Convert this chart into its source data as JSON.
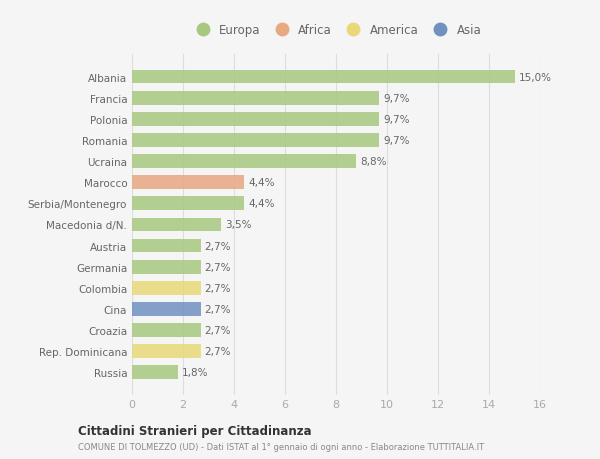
{
  "countries": [
    "Albania",
    "Francia",
    "Polonia",
    "Romania",
    "Ucraina",
    "Marocco",
    "Serbia/Montenegro",
    "Macedonia d/N.",
    "Austria",
    "Germania",
    "Colombia",
    "Cina",
    "Croazia",
    "Rep. Dominicana",
    "Russia"
  ],
  "values": [
    15.0,
    9.7,
    9.7,
    9.7,
    8.8,
    4.4,
    4.4,
    3.5,
    2.7,
    2.7,
    2.7,
    2.7,
    2.7,
    2.7,
    1.8
  ],
  "labels": [
    "15,0%",
    "9,7%",
    "9,7%",
    "9,7%",
    "8,8%",
    "4,4%",
    "4,4%",
    "3,5%",
    "2,7%",
    "2,7%",
    "2,7%",
    "2,7%",
    "2,7%",
    "2,7%",
    "1,8%"
  ],
  "colors": [
    "#a8c880",
    "#a8c880",
    "#a8c880",
    "#a8c880",
    "#a8c880",
    "#e8a882",
    "#a8c880",
    "#a8c880",
    "#a8c880",
    "#a8c880",
    "#e8d878",
    "#7090c0",
    "#a8c880",
    "#e8d878",
    "#a8c880"
  ],
  "legend": {
    "Europa": "#a8c880",
    "Africa": "#e8a882",
    "America": "#e8d878",
    "Asia": "#7090c0"
  },
  "xlim": [
    0,
    16
  ],
  "xticks": [
    0,
    2,
    4,
    6,
    8,
    10,
    12,
    14,
    16
  ],
  "title1": "Cittadini Stranieri per Cittadinanza",
  "title2": "COMUNE DI TOLMEZZO (UD) - Dati ISTAT al 1° gennaio di ogni anno - Elaborazione TUTTITALIA.IT",
  "bg_color": "#f5f5f5",
  "bar_height": 0.65
}
